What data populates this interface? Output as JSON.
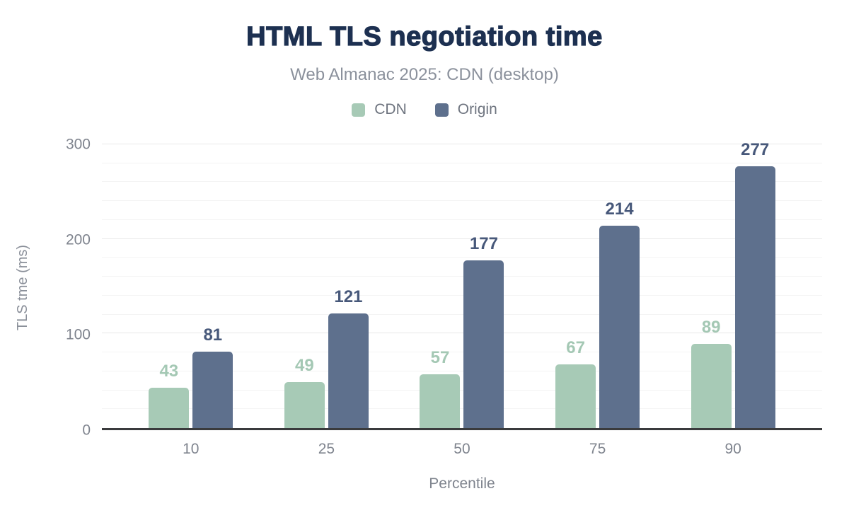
{
  "chart_data": {
    "type": "bar",
    "title": "HTML TLS negotiation time",
    "subtitle": "Web Almanac 2025: CDN (desktop)",
    "categories": [
      "10",
      "25",
      "50",
      "75",
      "90"
    ],
    "series": [
      {
        "name": "CDN",
        "values": [
          43,
          49,
          57,
          67,
          89
        ],
        "color": "#a7cab6",
        "label_color": "#a4c8b4"
      },
      {
        "name": "Origin",
        "values": [
          81,
          121,
          177,
          214,
          277
        ],
        "color": "#5e708d",
        "label_color": "#47587a"
      }
    ],
    "xlabel": "Percentile",
    "ylabel": "TLS tme (ms)",
    "ylim": [
      0,
      300
    ],
    "yticks": [
      0,
      100,
      200,
      300
    ],
    "minor_grid_step": 20,
    "grid": true,
    "legend_position": "top",
    "bar_labels": true
  },
  "colors": {
    "title": "#1d3051",
    "subtitle": "#8b919c",
    "legend_text": "#6e747f",
    "tick_text": "#7f848e",
    "axis_line": "#3a3b3d",
    "gridline_minor": "#f4f4f4",
    "gridline_major": "#e8e8e8",
    "background": "#ffffff"
  }
}
